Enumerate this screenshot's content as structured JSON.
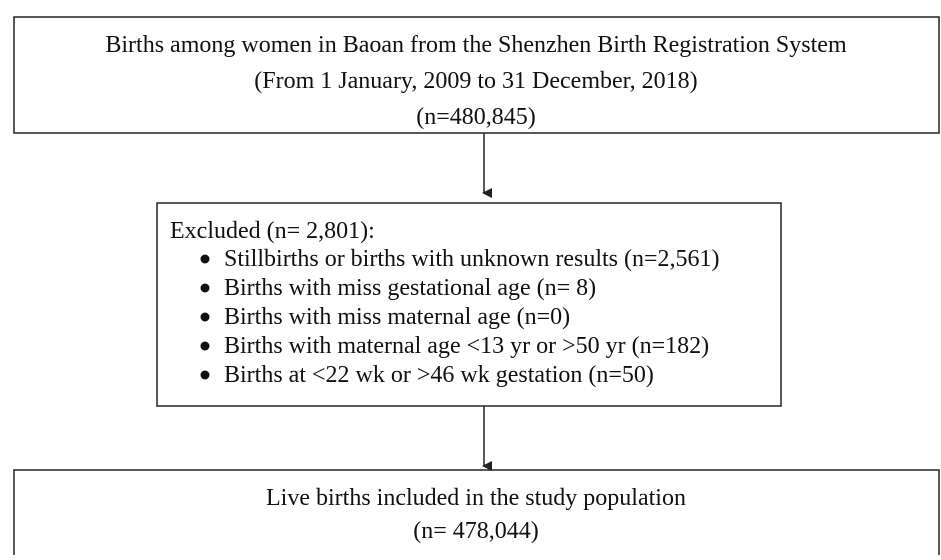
{
  "nodes": [
    {
      "lines": [
        "Births among women in Baoan from the Shenzhen Birth Registration System",
        "(From 1 January, 2009 to 31 December, 2018)",
        "(n=480,845)"
      ]
    },
    {
      "title": "Excluded (n= 2,801):",
      "items": [
        "Stillbirths or births with unknown results (n=2,561)",
        "Births with miss gestational age (n= 8)",
        "Births with miss maternal age (n=0)",
        "Births with maternal age <13 yr or >50 yr (n=182)",
        "Births at <22 wk or >46 wk gestation (n=50)"
      ]
    },
    {
      "lines": [
        "Live births included in the study population",
        "(n= 478,044)"
      ]
    }
  ]
}
